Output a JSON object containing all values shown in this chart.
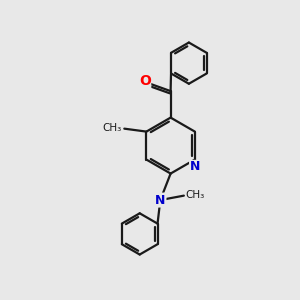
{
  "background_color": "#e8e8e8",
  "bond_color": "#1a1a1a",
  "O_color": "#ff0000",
  "N_color": "#0000cc",
  "line_width": 1.6,
  "figsize": [
    3.0,
    3.0
  ],
  "dpi": 100,
  "xlim": [
    0,
    10
  ],
  "ylim": [
    0,
    10
  ]
}
